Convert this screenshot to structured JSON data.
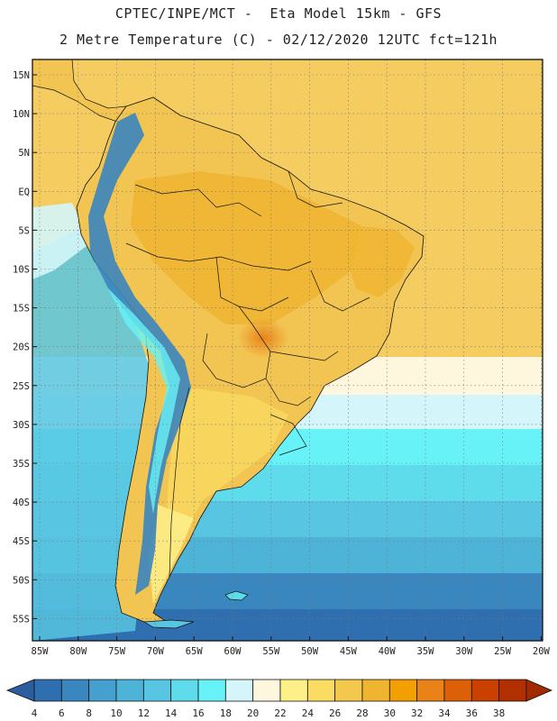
{
  "header": {
    "line1": "CPTEC/INPE/MCT -  Eta Model 15km - GFS",
    "line2": "2 Metre Temperature (C) - 02/12/2020 12UTC fct=121h"
  },
  "map": {
    "lat_labels": [
      "15N",
      "10N",
      "5N",
      "EQ",
      "5S",
      "10S",
      "15S",
      "20S",
      "25S",
      "30S",
      "35S",
      "40S",
      "45S",
      "50S",
      "55S"
    ],
    "lon_labels": [
      "85W",
      "80W",
      "75W",
      "70W",
      "65W",
      "60W",
      "55W",
      "50W",
      "45W",
      "40W",
      "35W",
      "30W",
      "25W",
      "20W"
    ],
    "ocean_color": "#3fa3cc",
    "land_color": "#f2c451"
  },
  "colorbar": {
    "labels": [
      "4",
      "6",
      "8",
      "10",
      "12",
      "14",
      "16",
      "18",
      "20",
      "22",
      "24",
      "26",
      "28",
      "30",
      "32",
      "34",
      "36",
      "38"
    ],
    "colors": [
      "#2f6fb0",
      "#3a86bf",
      "#45a0cf",
      "#4db4d8",
      "#58c6e2",
      "#5fdcec",
      "#66f2f6",
      "#d4f6fa",
      "#fef6dd",
      "#fef089",
      "#fadc62",
      "#f4c84c",
      "#efb530",
      "#f2a000",
      "#e98318",
      "#dd6008",
      "#c94000",
      "#b23000"
    ],
    "left_arrow_color": "#2c5d9e",
    "right_arrow_color": "#a12a00"
  }
}
